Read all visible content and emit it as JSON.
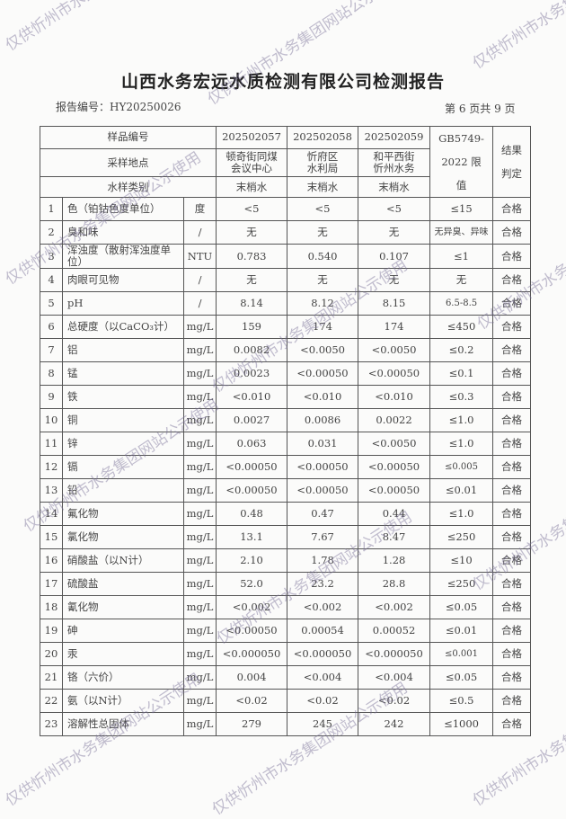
{
  "title": "山西水务宏远水质检测有限公司检测报告",
  "report_no": "报告编号：HY20250026",
  "page_info": "第 6 页共 9 页",
  "watermark": "仅供忻州市水务集团网站公示使用",
  "header": {
    "sample_no_label": "样品编号",
    "site_label": "采样地点",
    "type_label": "水样类别",
    "standard_label": "GB5749-2022 限值",
    "result_label": "结果判定",
    "samples": [
      {
        "no": "202502057",
        "site": "顿奇街同煤会议中心",
        "type": "末梢水"
      },
      {
        "no": "202502058",
        "site": "忻府区水利局",
        "type": "末梢水"
      },
      {
        "no": "202502059",
        "site": "和平西街忻州水务",
        "type": "末梢水"
      }
    ]
  },
  "rows": [
    {
      "n": "1",
      "item": "色（铂钴色度单位）",
      "unit": "度",
      "v": [
        "<5",
        "<5",
        "<5"
      ],
      "limit": "≤15",
      "result": "合格"
    },
    {
      "n": "2",
      "item": "臭和味",
      "unit": "/",
      "v": [
        "无",
        "无",
        "无"
      ],
      "limit": "无异臭、异味",
      "result": "合格"
    },
    {
      "n": "3",
      "item": "浑浊度（散射浑浊度单位）",
      "unit": "NTU",
      "v": [
        "0.783",
        "0.540",
        "0.107"
      ],
      "limit": "≤1",
      "result": "合格"
    },
    {
      "n": "4",
      "item": "肉眼可见物",
      "unit": "/",
      "v": [
        "无",
        "无",
        "无"
      ],
      "limit": "无",
      "result": "合格"
    },
    {
      "n": "5",
      "item": "pH",
      "unit": "/",
      "v": [
        "8.14",
        "8.12",
        "8.15"
      ],
      "limit": "6.5-8.5",
      "result": "合格"
    },
    {
      "n": "6",
      "item": "总硬度（以CaCO₃计）",
      "unit": "mg/L",
      "v": [
        "159",
        "174",
        "174"
      ],
      "limit": "≤450",
      "result": "合格"
    },
    {
      "n": "7",
      "item": "铝",
      "unit": "mg/L",
      "v": [
        "0.0082",
        "<0.0050",
        "<0.0050"
      ],
      "limit": "≤0.2",
      "result": "合格"
    },
    {
      "n": "8",
      "item": "锰",
      "unit": "mg/L",
      "v": [
        "0.0023",
        "<0.00050",
        "<0.00050"
      ],
      "limit": "≤0.1",
      "result": "合格"
    },
    {
      "n": "9",
      "item": "铁",
      "unit": "mg/L",
      "v": [
        "<0.010",
        "<0.010",
        "<0.010"
      ],
      "limit": "≤0.3",
      "result": "合格"
    },
    {
      "n": "10",
      "item": "铜",
      "unit": "mg/L",
      "v": [
        "0.0027",
        "0.0086",
        "0.0022"
      ],
      "limit": "≤1.0",
      "result": "合格"
    },
    {
      "n": "11",
      "item": "锌",
      "unit": "mg/L",
      "v": [
        "0.063",
        "0.031",
        "<0.0050"
      ],
      "limit": "≤1.0",
      "result": "合格"
    },
    {
      "n": "12",
      "item": "镉",
      "unit": "mg/L",
      "v": [
        "<0.00050",
        "<0.00050",
        "<0.00050"
      ],
      "limit": "≤0.005",
      "result": "合格"
    },
    {
      "n": "13",
      "item": "铅",
      "unit": "mg/L",
      "v": [
        "<0.00050",
        "<0.00050",
        "<0.00050"
      ],
      "limit": "≤0.01",
      "result": "合格"
    },
    {
      "n": "14",
      "item": "氟化物",
      "unit": "mg/L",
      "v": [
        "0.48",
        "0.47",
        "0.44"
      ],
      "limit": "≤1.0",
      "result": "合格"
    },
    {
      "n": "15",
      "item": "氯化物",
      "unit": "mg/L",
      "v": [
        "13.1",
        "7.67",
        "8.47"
      ],
      "limit": "≤250",
      "result": "合格"
    },
    {
      "n": "16",
      "item": "硝酸盐（以N计）",
      "unit": "mg/L",
      "v": [
        "2.10",
        "1.78",
        "1.28"
      ],
      "limit": "≤10",
      "result": "合格"
    },
    {
      "n": "17",
      "item": "硫酸盐",
      "unit": "mg/L",
      "v": [
        "52.0",
        "23.2",
        "28.8"
      ],
      "limit": "≤250",
      "result": "合格"
    },
    {
      "n": "18",
      "item": "氰化物",
      "unit": "mg/L",
      "v": [
        "<0.002",
        "<0.002",
        "<0.002"
      ],
      "limit": "≤0.05",
      "result": "合格"
    },
    {
      "n": "19",
      "item": "砷",
      "unit": "mg/L",
      "v": [
        "<0.00050",
        "0.00054",
        "0.00052"
      ],
      "limit": "≤0.01",
      "result": "合格"
    },
    {
      "n": "20",
      "item": "汞",
      "unit": "mg/L",
      "v": [
        "<0.000050",
        "<0.000050",
        "<0.000050"
      ],
      "limit": "≤0.001",
      "result": "合格"
    },
    {
      "n": "21",
      "item": "铬（六价）",
      "unit": "mg/L",
      "v": [
        "0.004",
        "<0.004",
        "<0.004"
      ],
      "limit": "≤0.05",
      "result": "合格"
    },
    {
      "n": "22",
      "item": "氨（以N计）",
      "unit": "mg/L",
      "v": [
        "<0.02",
        "<0.02",
        "<0.02"
      ],
      "limit": "≤0.5",
      "result": "合格"
    },
    {
      "n": "23",
      "item": "溶解性总固体",
      "unit": "mg/L",
      "v": [
        "279",
        "245",
        "242"
      ],
      "limit": "≤1000",
      "result": "合格"
    }
  ]
}
